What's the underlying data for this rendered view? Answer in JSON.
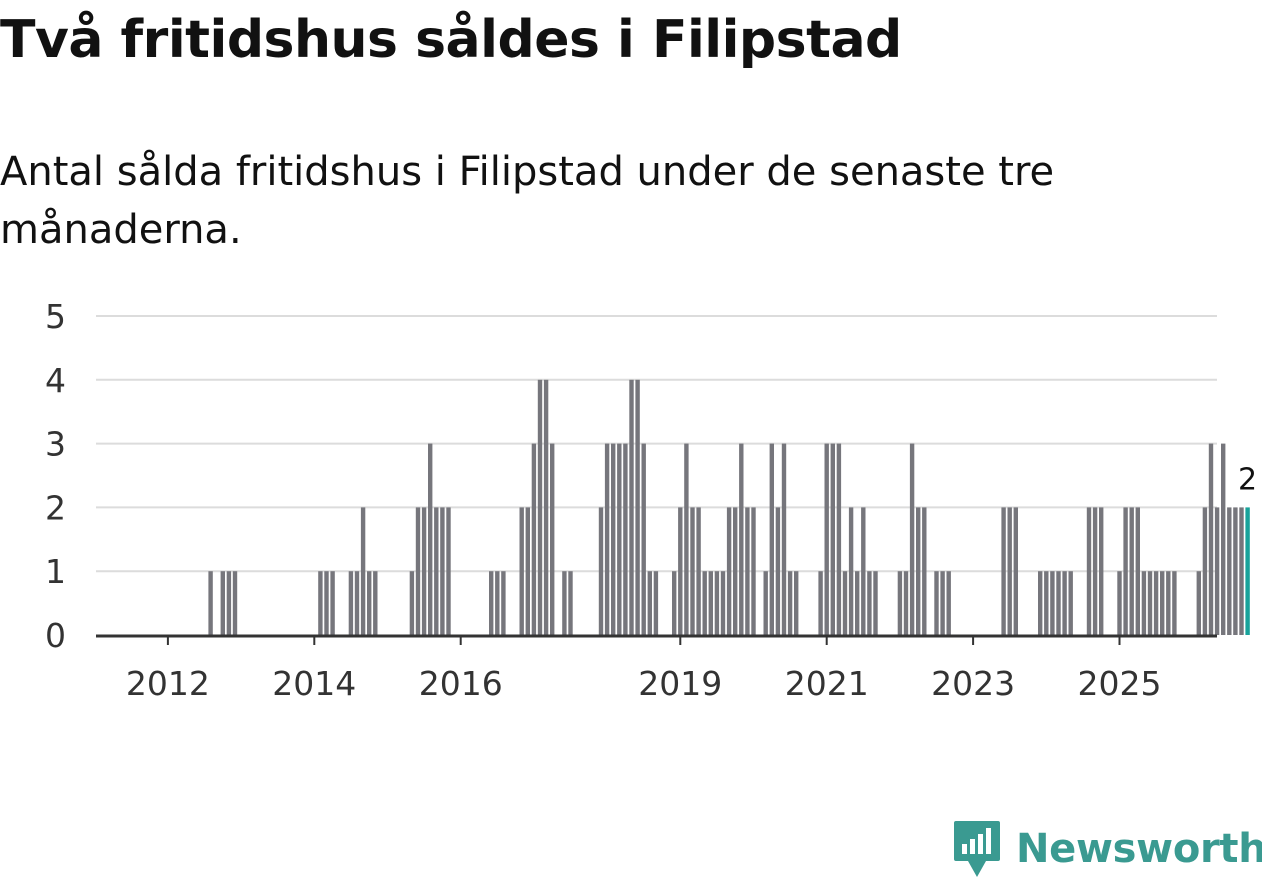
{
  "title": "Två fritidshus såldes i Filipstad",
  "subtitle": "Antal sålda fritidshus i Filipstad under de senaste tre månaderna.",
  "brand": {
    "name": "Newsworthy",
    "color": "#3a9a91",
    "icon": "newsworthy-logo-icon"
  },
  "colors": {
    "bar": "#76767c",
    "highlight": "#18a39b",
    "grid": "#dcdcdc",
    "axis": "#333333"
  },
  "chart_data": {
    "type": "bar",
    "title": "Två fritidshus såldes i Filipstad",
    "xlabel": "",
    "ylabel": "",
    "ylim": [
      0,
      5
    ],
    "yticks": [
      0,
      1,
      2,
      3,
      4,
      5
    ],
    "x_start": "2011-01",
    "xtick_labels": [
      {
        "label": "2012",
        "month": "2012-01"
      },
      {
        "label": "2014",
        "month": "2014-01"
      },
      {
        "label": "2016",
        "month": "2016-01"
      },
      {
        "label": "2019",
        "month": "2019-01"
      },
      {
        "label": "2021",
        "month": "2021-01"
      },
      {
        "label": "2023",
        "month": "2023-01"
      },
      {
        "label": "2025",
        "month": "2025-01"
      }
    ],
    "highlight_label": "2",
    "values": [
      0,
      0,
      0,
      0,
      0,
      0,
      0,
      0,
      0,
      0,
      0,
      0,
      0,
      0,
      0,
      0,
      0,
      0,
      0,
      1,
      0,
      1,
      1,
      1,
      0,
      0,
      0,
      0,
      0,
      0,
      0,
      0,
      0,
      0,
      0,
      0,
      0,
      1,
      1,
      1,
      0,
      0,
      1,
      1,
      2,
      1,
      1,
      0,
      0,
      0,
      0,
      0,
      1,
      2,
      2,
      3,
      2,
      2,
      2,
      0,
      0,
      0,
      0,
      0,
      0,
      1,
      1,
      1,
      0,
      0,
      2,
      2,
      3,
      4,
      4,
      3,
      0,
      1,
      1,
      0,
      0,
      0,
      0,
      2,
      3,
      3,
      3,
      3,
      4,
      4,
      3,
      1,
      1,
      0,
      0,
      1,
      2,
      3,
      2,
      2,
      1,
      1,
      1,
      1,
      2,
      2,
      3,
      2,
      2,
      0,
      1,
      3,
      2,
      3,
      1,
      1,
      0,
      0,
      0,
      1,
      3,
      3,
      3,
      1,
      2,
      1,
      2,
      1,
      1,
      0,
      0,
      0,
      1,
      1,
      3,
      2,
      2,
      0,
      1,
      1,
      1,
      0,
      0,
      0,
      0,
      0,
      0,
      0,
      0,
      2,
      2,
      2,
      0,
      0,
      0,
      1,
      1,
      1,
      1,
      1,
      1,
      0,
      0,
      2,
      2,
      2,
      0,
      0,
      1,
      2,
      2,
      2,
      1,
      1,
      1,
      1,
      1,
      1,
      0,
      0,
      0,
      1,
      2,
      3,
      2,
      3,
      2,
      2,
      2,
      2
    ]
  }
}
